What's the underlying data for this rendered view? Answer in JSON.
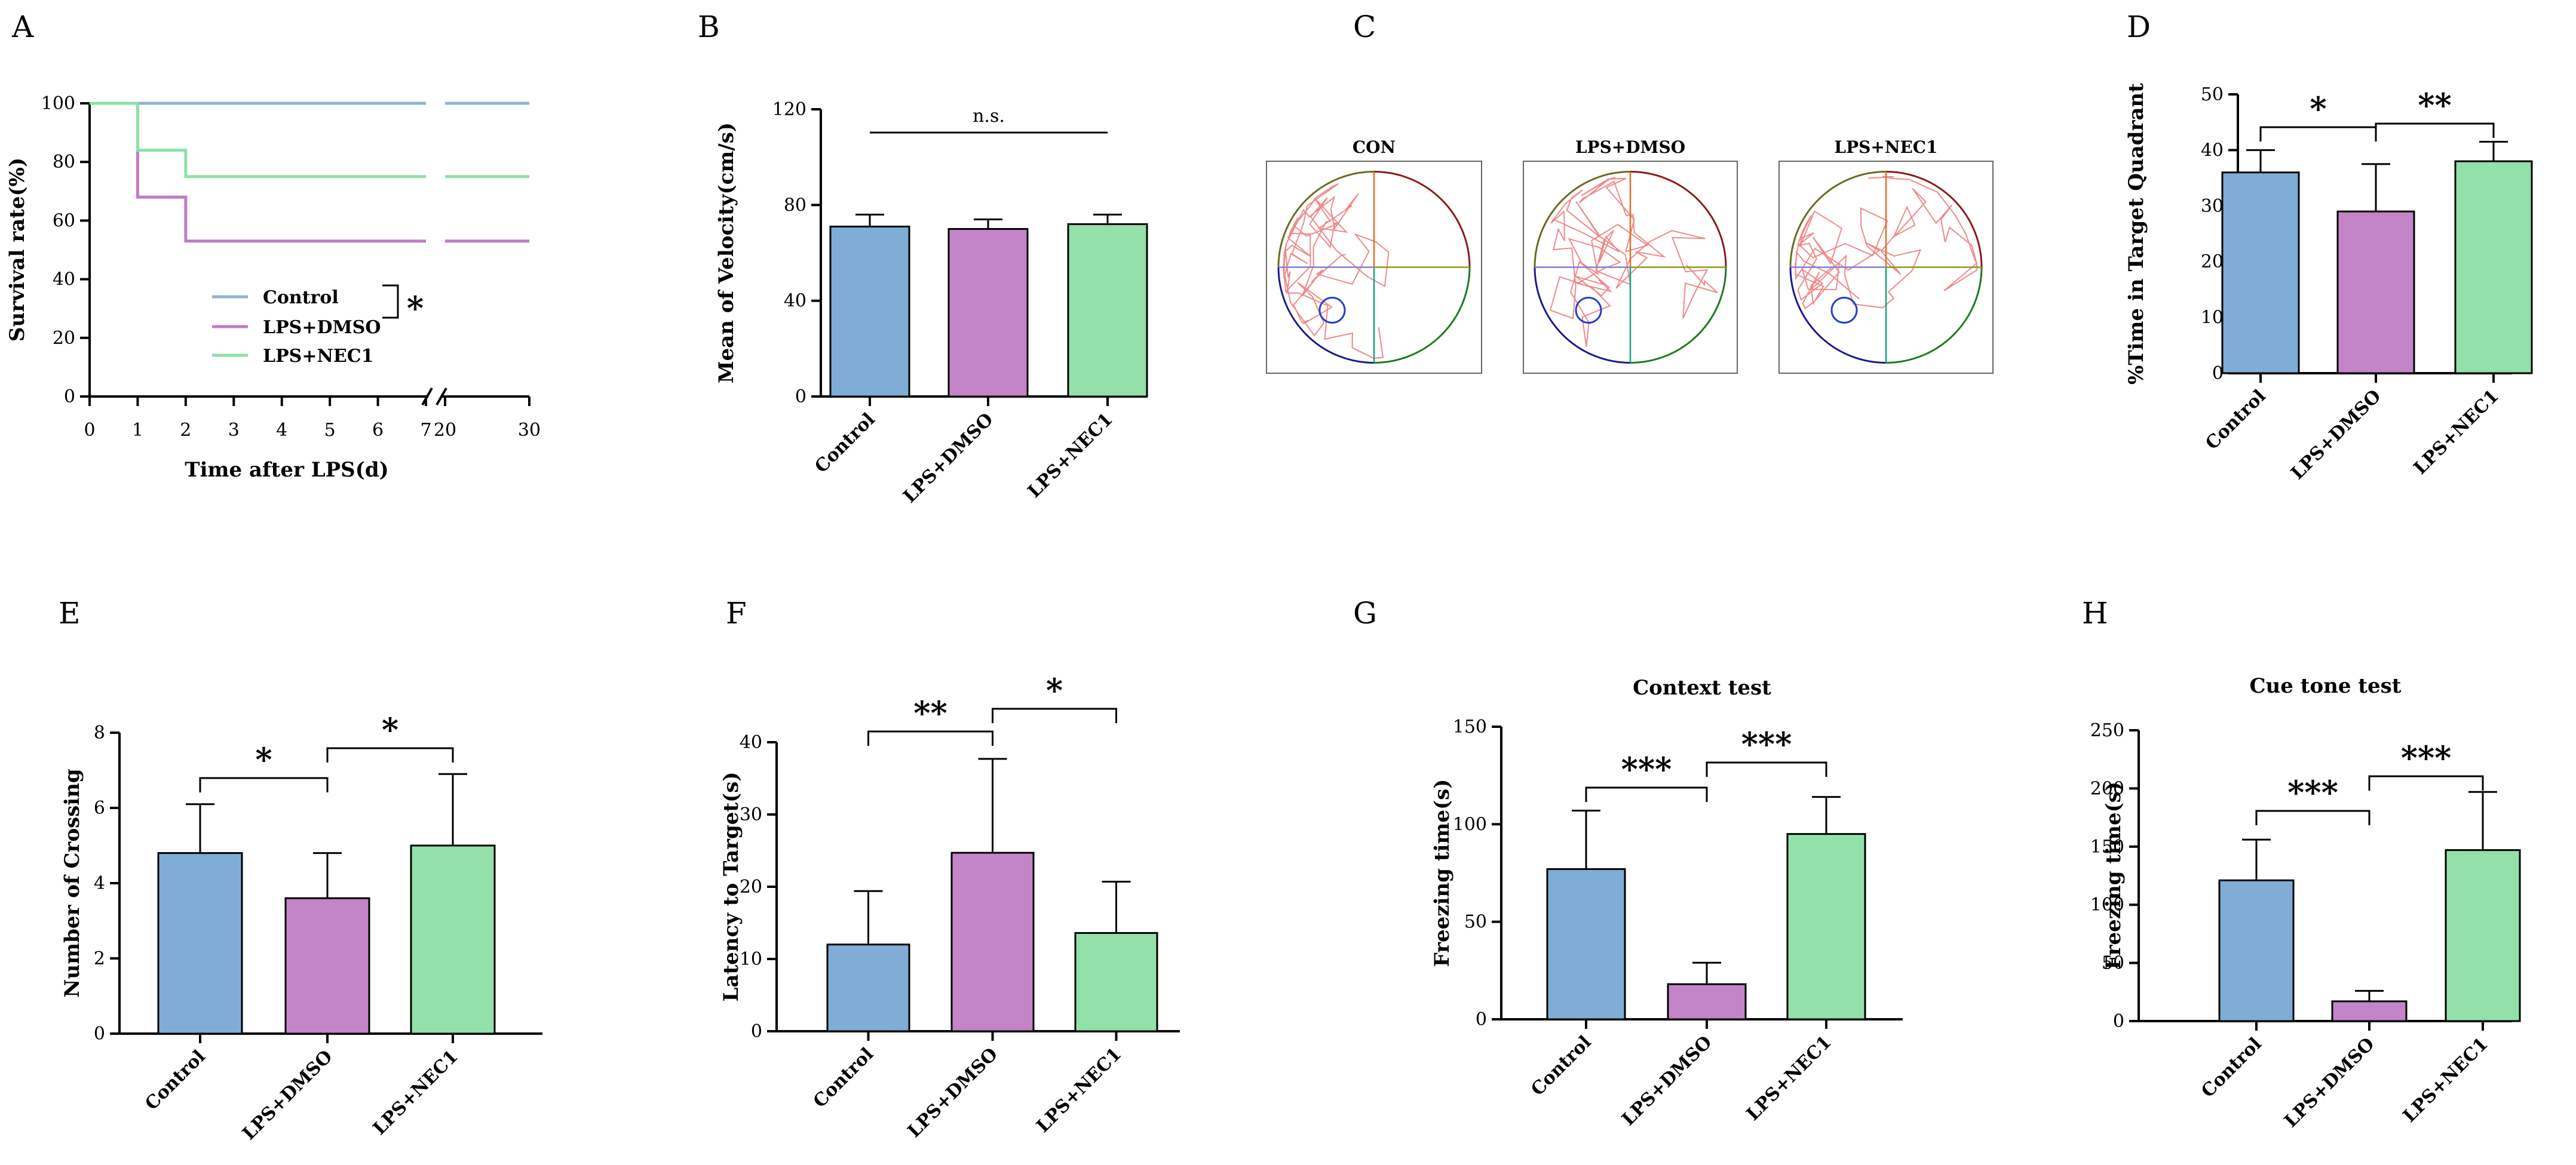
{
  "colors": {
    "control": "#7fadd6",
    "dmso": "#c385c7",
    "nec1": "#93e0aa",
    "control_line": "#8db4dc",
    "dmso_line": "#c07ac7",
    "nec1_line": "#8fe0a8"
  },
  "chart_data": [
    {
      "panel": "A",
      "type": "line",
      "title": "",
      "xlabel": "Time after LPS(d)",
      "ylabel": "Survival rate(%)",
      "ylim": [
        0,
        100
      ],
      "yticks": [
        "0",
        "20",
        "40",
        "60",
        "80",
        "100"
      ],
      "xticks": [
        "0",
        "1",
        "2",
        "3",
        "4",
        "5",
        "6",
        "7",
        "20",
        "30"
      ],
      "legend": [
        "Control",
        "LPS+DMSO",
        "LPS+NEC1"
      ],
      "significance": "*",
      "series": [
        {
          "name": "Control",
          "x": [
            0,
            7,
            20,
            30
          ],
          "y": [
            100,
            100,
            100,
            100
          ]
        },
        {
          "name": "LPS+DMSO",
          "x": [
            0,
            1,
            1,
            2,
            2,
            7,
            20,
            30
          ],
          "y": [
            100,
            100,
            68,
            68,
            53,
            53,
            53,
            53
          ]
        },
        {
          "name": "LPS+NEC1",
          "x": [
            0,
            1,
            1,
            2,
            2,
            7,
            20,
            30
          ],
          "y": [
            100,
            100,
            84,
            84,
            75,
            75,
            75,
            75
          ]
        }
      ]
    },
    {
      "panel": "B",
      "type": "bar",
      "title": "",
      "xlabel": "",
      "ylabel": "Mean of Velocity(cm/s)",
      "ylim": [
        0,
        120
      ],
      "yticks": [
        "0",
        "40",
        "80",
        "120"
      ],
      "categories": [
        "Control",
        "LPS+DMSO",
        "LPS+NEC1"
      ],
      "values": [
        71,
        70,
        72
      ],
      "errors": [
        5,
        4,
        4
      ],
      "brackets": [
        {
          "from": 0,
          "to": 2,
          "label": "n.s."
        }
      ]
    },
    {
      "panel": "D",
      "type": "bar",
      "title": "",
      "xlabel": "",
      "ylabel": "%Time in Target Quadrant",
      "ylim": [
        0,
        50
      ],
      "yticks": [
        "0",
        "10",
        "20",
        "30",
        "40",
        "50"
      ],
      "categories": [
        "Control",
        "LPS+DMSO",
        "LPS+NEC1"
      ],
      "values": [
        36,
        29,
        38
      ],
      "errors": [
        4,
        8.5,
        3.5
      ],
      "brackets": [
        {
          "from": 0,
          "to": 1,
          "label": "*"
        },
        {
          "from": 1,
          "to": 2,
          "label": "**"
        }
      ]
    },
    {
      "panel": "E",
      "type": "bar",
      "title": "",
      "xlabel": "",
      "ylabel": "Number of Crossing",
      "ylim": [
        0,
        8
      ],
      "yticks": [
        "0",
        "2",
        "4",
        "6",
        "8"
      ],
      "categories": [
        "Control",
        "LPS+DMSO",
        "LPS+NEC1"
      ],
      "values": [
        4.8,
        3.6,
        5.0
      ],
      "errors": [
        1.3,
        1.2,
        1.9
      ],
      "brackets": [
        {
          "from": 0,
          "to": 1,
          "label": "*"
        },
        {
          "from": 1,
          "to": 2,
          "label": "*"
        }
      ]
    },
    {
      "panel": "F",
      "type": "bar",
      "title": "",
      "xlabel": "",
      "ylabel": "Latency to Target(s)",
      "ylim": [
        0,
        40
      ],
      "yticks": [
        "0",
        "10",
        "20",
        "30",
        "40"
      ],
      "categories": [
        "Control",
        "LPS+DMSO",
        "LPS+NEC1"
      ],
      "values": [
        12,
        24.7,
        13.6
      ],
      "errors": [
        7.4,
        13,
        7.1
      ],
      "brackets": [
        {
          "from": 0,
          "to": 1,
          "label": "**"
        },
        {
          "from": 1,
          "to": 2,
          "label": "*"
        }
      ]
    },
    {
      "panel": "G",
      "type": "bar",
      "title": "Context test",
      "xlabel": "",
      "ylabel": "Freezing time(s)",
      "ylim": [
        0,
        150
      ],
      "yticks": [
        "0",
        "50",
        "100",
        "150"
      ],
      "categories": [
        "Control",
        "LPS+DMSO",
        "LPS+NEC1"
      ],
      "values": [
        77,
        18,
        95
      ],
      "errors": [
        30,
        11,
        19
      ],
      "brackets": [
        {
          "from": 0,
          "to": 1,
          "label": "***"
        },
        {
          "from": 1,
          "to": 2,
          "label": "***"
        }
      ]
    },
    {
      "panel": "H",
      "type": "bar",
      "title": "Cue tone test",
      "xlabel": "",
      "ylabel": "Freezing time(s)",
      "ylim": [
        0,
        250
      ],
      "yticks": [
        "0",
        "50",
        "100",
        "150",
        "200",
        "250"
      ],
      "categories": [
        "Control",
        "LPS+DMSO",
        "LPS+NEC1"
      ],
      "values": [
        121,
        17,
        147
      ],
      "errors": [
        35,
        9,
        50
      ],
      "brackets": [
        {
          "from": 0,
          "to": 1,
          "label": "***"
        },
        {
          "from": 1,
          "to": 2,
          "label": "***"
        }
      ]
    }
  ],
  "maze_panel": {
    "panel": "C",
    "titles": [
      "CON",
      "LPS+DMSO",
      "LPS+NEC1"
    ]
  }
}
